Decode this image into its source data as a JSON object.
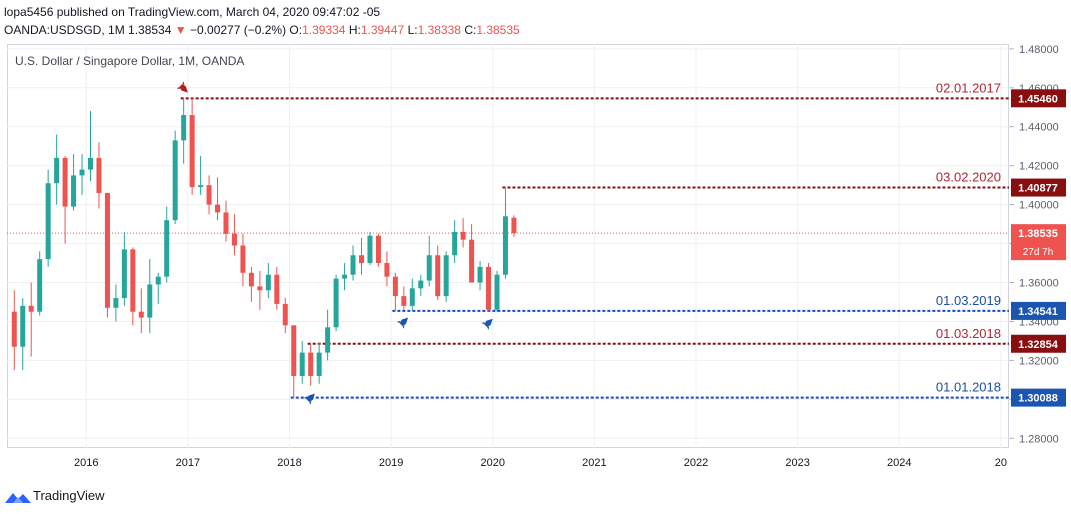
{
  "header": {
    "publisher_line": "lopa5456 published on TradingView.com, March 04, 2020 09:47:02 -05",
    "symbol": "OANDA:USDSGD, 1M",
    "last": "1.38534",
    "change_arrow": "▼",
    "change": "−0.00277 (−0.2%)",
    "o_label": "O:",
    "o": "1.39334",
    "h_label": "H:",
    "h": "1.39447",
    "l_label": "L:",
    "l": "1.38338",
    "c_label": "C:",
    "c": "1.38535"
  },
  "footer": {
    "brand": "TradingView"
  },
  "chart_data": {
    "type": "candlestick",
    "title": "U.S. Dollar / Singapore Dollar, 1M, OANDA",
    "y_ticks": [
      "1.48000",
      "1.46000",
      "1.44000",
      "1.42000",
      "1.40000",
      "1.38000",
      "1.36000",
      "1.34000",
      "1.32000",
      "1.30000",
      "1.28000"
    ],
    "ylim": [
      1.275,
      1.4825
    ],
    "x_ticks": [
      {
        "label": "2016",
        "t": 2016.0
      },
      {
        "label": "2017",
        "t": 2017.0
      },
      {
        "label": "2018",
        "t": 2018.0
      },
      {
        "label": "2019",
        "t": 2019.0
      },
      {
        "label": "2020",
        "t": 2020.0
      },
      {
        "label": "2021",
        "t": 2021.0
      },
      {
        "label": "2022",
        "t": 2022.0
      },
      {
        "label": "2023",
        "t": 2023.0
      },
      {
        "label": "2024",
        "t": 2024.0
      },
      {
        "label": "20",
        "t": 2025.0
      }
    ],
    "xlim": [
      2015.22,
      2025.08
    ],
    "candles": [
      {
        "t": "2015-04",
        "o": 1.345,
        "h": 1.356,
        "l": 1.315,
        "c": 1.327
      },
      {
        "t": "2015-05",
        "o": 1.327,
        "h": 1.352,
        "l": 1.315,
        "c": 1.348
      },
      {
        "t": "2015-06",
        "o": 1.348,
        "h": 1.36,
        "l": 1.322,
        "c": 1.345
      },
      {
        "t": "2015-07",
        "o": 1.345,
        "h": 1.376,
        "l": 1.343,
        "c": 1.372
      },
      {
        "t": "2015-08",
        "o": 1.372,
        "h": 1.418,
        "l": 1.368,
        "c": 1.411
      },
      {
        "t": "2015-09",
        "o": 1.411,
        "h": 1.436,
        "l": 1.4,
        "c": 1.424
      },
      {
        "t": "2015-10",
        "o": 1.424,
        "h": 1.425,
        "l": 1.38,
        "c": 1.399
      },
      {
        "t": "2015-11",
        "o": 1.399,
        "h": 1.426,
        "l": 1.397,
        "c": 1.415
      },
      {
        "t": "2015-12",
        "o": 1.415,
        "h": 1.426,
        "l": 1.405,
        "c": 1.418
      },
      {
        "t": "2016-01",
        "o": 1.418,
        "h": 1.448,
        "l": 1.412,
        "c": 1.424
      },
      {
        "t": "2016-02",
        "o": 1.424,
        "h": 1.432,
        "l": 1.398,
        "c": 1.406
      },
      {
        "t": "2016-03",
        "o": 1.406,
        "h": 1.406,
        "l": 1.342,
        "c": 1.347
      },
      {
        "t": "2016-04",
        "o": 1.347,
        "h": 1.359,
        "l": 1.34,
        "c": 1.352
      },
      {
        "t": "2016-05",
        "o": 1.352,
        "h": 1.386,
        "l": 1.348,
        "c": 1.377
      },
      {
        "t": "2016-06",
        "o": 1.377,
        "h": 1.378,
        "l": 1.338,
        "c": 1.345
      },
      {
        "t": "2016-07",
        "o": 1.345,
        "h": 1.357,
        "l": 1.334,
        "c": 1.342
      },
      {
        "t": "2016-08",
        "o": 1.342,
        "h": 1.372,
        "l": 1.334,
        "c": 1.359
      },
      {
        "t": "2016-09",
        "o": 1.359,
        "h": 1.365,
        "l": 1.349,
        "c": 1.363
      },
      {
        "t": "2016-10",
        "o": 1.363,
        "h": 1.399,
        "l": 1.36,
        "c": 1.392
      },
      {
        "t": "2016-11",
        "o": 1.392,
        "h": 1.438,
        "l": 1.39,
        "c": 1.433
      },
      {
        "t": "2016-12",
        "o": 1.433,
        "h": 1.4546,
        "l": 1.421,
        "c": 1.446
      },
      {
        "t": "2017-01",
        "o": 1.446,
        "h": 1.4546,
        "l": 1.405,
        "c": 1.409
      },
      {
        "t": "2017-02",
        "o": 1.409,
        "h": 1.425,
        "l": 1.405,
        "c": 1.41
      },
      {
        "t": "2017-03",
        "o": 1.41,
        "h": 1.415,
        "l": 1.395,
        "c": 1.4
      },
      {
        "t": "2017-04",
        "o": 1.4,
        "h": 1.414,
        "l": 1.392,
        "c": 1.396
      },
      {
        "t": "2017-05",
        "o": 1.396,
        "h": 1.402,
        "l": 1.381,
        "c": 1.385
      },
      {
        "t": "2017-06",
        "o": 1.385,
        "h": 1.395,
        "l": 1.374,
        "c": 1.379
      },
      {
        "t": "2017-07",
        "o": 1.379,
        "h": 1.385,
        "l": 1.358,
        "c": 1.365
      },
      {
        "t": "2017-08",
        "o": 1.365,
        "h": 1.368,
        "l": 1.35,
        "c": 1.358
      },
      {
        "t": "2017-09",
        "o": 1.358,
        "h": 1.366,
        "l": 1.346,
        "c": 1.356
      },
      {
        "t": "2017-10",
        "o": 1.356,
        "h": 1.37,
        "l": 1.352,
        "c": 1.364
      },
      {
        "t": "2017-11",
        "o": 1.364,
        "h": 1.368,
        "l": 1.346,
        "c": 1.349
      },
      {
        "t": "2017-12",
        "o": 1.349,
        "h": 1.352,
        "l": 1.334,
        "c": 1.338
      },
      {
        "t": "2018-01",
        "o": 1.338,
        "h": 1.338,
        "l": 1.3009,
        "c": 1.312
      },
      {
        "t": "2018-02",
        "o": 1.312,
        "h": 1.33,
        "l": 1.308,
        "c": 1.324
      },
      {
        "t": "2018-03",
        "o": 1.324,
        "h": 1.3285,
        "l": 1.307,
        "c": 1.312
      },
      {
        "t": "2018-04",
        "o": 1.312,
        "h": 1.329,
        "l": 1.308,
        "c": 1.324
      },
      {
        "t": "2018-05",
        "o": 1.324,
        "h": 1.346,
        "l": 1.32,
        "c": 1.337
      },
      {
        "t": "2018-06",
        "o": 1.337,
        "h": 1.364,
        "l": 1.335,
        "c": 1.362
      },
      {
        "t": "2018-07",
        "o": 1.362,
        "h": 1.37,
        "l": 1.356,
        "c": 1.364
      },
      {
        "t": "2018-08",
        "o": 1.364,
        "h": 1.379,
        "l": 1.361,
        "c": 1.374
      },
      {
        "t": "2018-09",
        "o": 1.374,
        "h": 1.383,
        "l": 1.364,
        "c": 1.37
      },
      {
        "t": "2018-10",
        "o": 1.37,
        "h": 1.386,
        "l": 1.369,
        "c": 1.384
      },
      {
        "t": "2018-11",
        "o": 1.384,
        "h": 1.385,
        "l": 1.368,
        "c": 1.37
      },
      {
        "t": "2018-12",
        "o": 1.37,
        "h": 1.376,
        "l": 1.358,
        "c": 1.363
      },
      {
        "t": "2019-01",
        "o": 1.363,
        "h": 1.365,
        "l": 1.3454,
        "c": 1.353
      },
      {
        "t": "2019-02",
        "o": 1.353,
        "h": 1.358,
        "l": 1.346,
        "c": 1.348
      },
      {
        "t": "2019-03",
        "o": 1.348,
        "h": 1.362,
        "l": 1.3454,
        "c": 1.357
      },
      {
        "t": "2019-04",
        "o": 1.357,
        "h": 1.364,
        "l": 1.353,
        "c": 1.361
      },
      {
        "t": "2019-05",
        "o": 1.361,
        "h": 1.384,
        "l": 1.358,
        "c": 1.374
      },
      {
        "t": "2019-06",
        "o": 1.374,
        "h": 1.379,
        "l": 1.351,
        "c": 1.353
      },
      {
        "t": "2019-07",
        "o": 1.353,
        "h": 1.376,
        "l": 1.35,
        "c": 1.374
      },
      {
        "t": "2019-08",
        "o": 1.374,
        "h": 1.392,
        "l": 1.37,
        "c": 1.386
      },
      {
        "t": "2019-09",
        "o": 1.386,
        "h": 1.393,
        "l": 1.378,
        "c": 1.382
      },
      {
        "t": "2019-10",
        "o": 1.382,
        "h": 1.39,
        "l": 1.36,
        "c": 1.36
      },
      {
        "t": "2019-11",
        "o": 1.36,
        "h": 1.371,
        "l": 1.356,
        "c": 1.368
      },
      {
        "t": "2019-12",
        "o": 1.368,
        "h": 1.37,
        "l": 1.3454,
        "c": 1.346
      },
      {
        "t": "2020-01",
        "o": 1.346,
        "h": 1.366,
        "l": 1.345,
        "c": 1.364
      },
      {
        "t": "2020-02",
        "o": 1.364,
        "h": 1.4088,
        "l": 1.362,
        "c": 1.394
      },
      {
        "t": "2020-03",
        "o": 1.3933,
        "h": 1.3945,
        "l": 1.3834,
        "c": 1.3854
      }
    ],
    "levels": [
      {
        "date_label": "02.01.2017",
        "price_label": "1.45460",
        "value": 1.4546,
        "from": "2016-12",
        "color": "#880e10",
        "label_color": "#b22833",
        "box_color": "#880e10"
      },
      {
        "date_label": "03.02.2020",
        "price_label": "1.40877",
        "value": 1.40877,
        "from": "2020-02",
        "color": "#880e10",
        "label_color": "#b22833",
        "box_color": "#880e10"
      },
      {
        "date_label": "01.03.2019",
        "price_label": "1.34541",
        "value": 1.34541,
        "from": "2019-01",
        "color": "#1848cc",
        "label_color": "#1b4fa8",
        "box_color": "#1a56b0"
      },
      {
        "date_label": "01.03.2018",
        "price_label": "1.32854",
        "value": 1.32854,
        "from": "2018-03",
        "color": "#880e10",
        "label_color": "#b22833",
        "box_color": "#880e10"
      },
      {
        "date_label": "01.01.2018",
        "price_label": "1.30088",
        "value": 1.30088,
        "from": "2018-01",
        "color": "#1848cc",
        "label_color": "#1b4fa8",
        "box_color": "#1a56b0"
      }
    ],
    "last_price": {
      "label": "1.38535",
      "value": 1.38535,
      "countdown": "27d 7h",
      "color": "#ef5350"
    },
    "colors": {
      "up": "#26a69a",
      "down": "#ef5350",
      "grid": "#eef0f3",
      "axis_text": "#5d606b"
    },
    "markers": [
      {
        "t": "2016-12",
        "side": "top",
        "color": "#b71c1c"
      },
      {
        "t": "2018-03",
        "side": "bottom",
        "color": "#1a56b0"
      },
      {
        "t": "2019-02",
        "side": "bottom",
        "color": "#1a56b0"
      },
      {
        "t": "2019-12",
        "side": "bottom",
        "color": "#1a56b0"
      }
    ]
  }
}
